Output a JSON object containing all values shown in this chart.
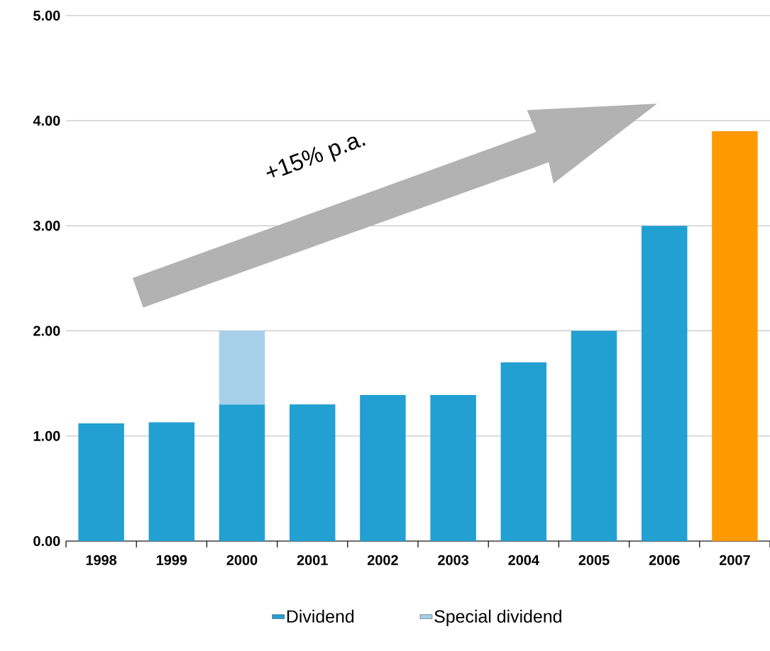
{
  "chart_data": {
    "type": "bar",
    "stacked": true,
    "categories": [
      "1998",
      "1999",
      "2000",
      "2001",
      "2002",
      "2003",
      "2004",
      "2005",
      "2006",
      "2007"
    ],
    "series": [
      {
        "name": "Dividend",
        "color": "#22a0d2",
        "colors": [
          "#22a0d2",
          "#22a0d2",
          "#22a0d2",
          "#22a0d2",
          "#22a0d2",
          "#22a0d2",
          "#22a0d2",
          "#22a0d2",
          "#22a0d2",
          "#ff9900"
        ],
        "values": [
          1.12,
          1.13,
          1.3,
          1.3,
          1.39,
          1.39,
          1.7,
          2.0,
          3.0,
          3.9
        ]
      },
      {
        "name": "Special dividend",
        "color": "#a6d0ea",
        "values": [
          null,
          null,
          0.7,
          null,
          null,
          null,
          null,
          null,
          null,
          null
        ]
      }
    ],
    "ylim": [
      0,
      5
    ],
    "yticks": [
      {
        "value": 0,
        "label": "0.00"
      },
      {
        "value": 1,
        "label": "1.00"
      },
      {
        "value": 2,
        "label": "2.00"
      },
      {
        "value": 3,
        "label": "3.00"
      },
      {
        "value": 4,
        "label": "4.00"
      },
      {
        "value": 5,
        "label": "5.00"
      }
    ],
    "grid": "y",
    "legend": "bottom",
    "annotations": [
      "+15% p.a."
    ]
  }
}
